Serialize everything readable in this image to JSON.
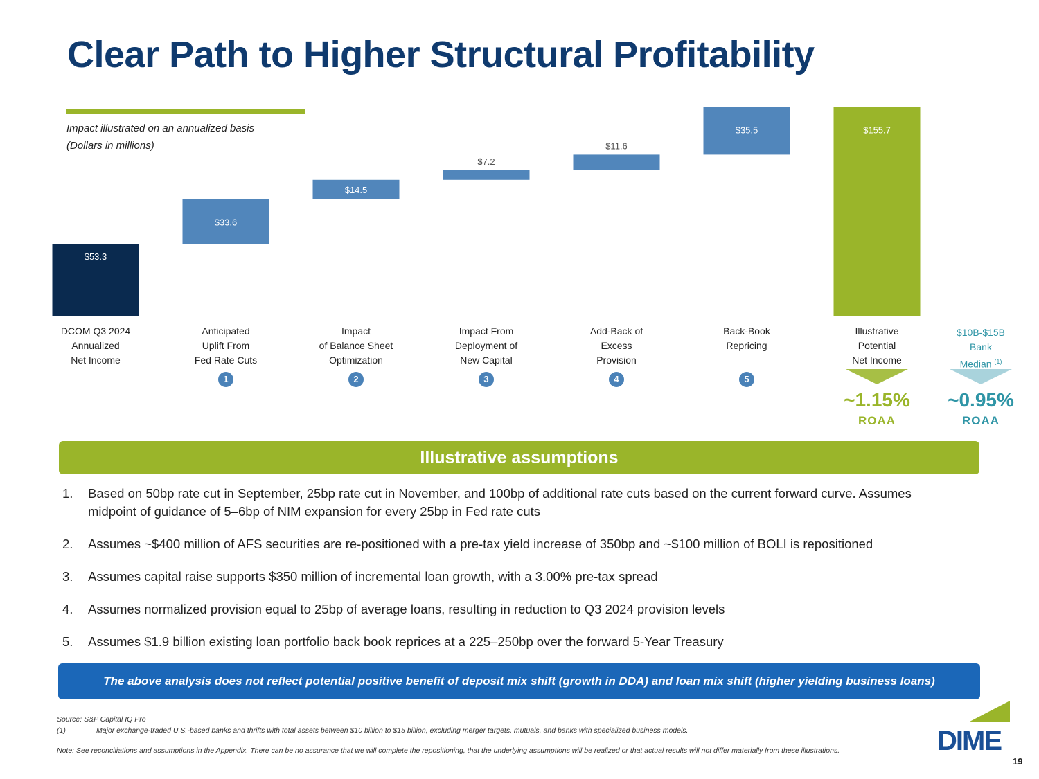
{
  "title": "Clear Path to Higher Structural Profitability",
  "subtitle1": "Impact illustrated on an annualized basis",
  "subtitle2": "(Dollars in millions)",
  "chart_data": {
    "type": "bar",
    "subtype": "waterfall",
    "categories": [
      [
        "DCOM Q3 2024",
        "Annualized",
        "Net Income"
      ],
      [
        "Anticipated",
        "Uplift From",
        "Fed Rate Cuts"
      ],
      [
        "Impact",
        "of Balance Sheet",
        "Optimization"
      ],
      [
        "Impact From",
        "Deployment of",
        "New Capital"
      ],
      [
        "Add-Back of",
        "Excess",
        "Provision"
      ],
      [
        "Back-Book",
        "Repricing"
      ],
      [
        "Illustrative",
        "Potential",
        "Net Income"
      ]
    ],
    "values": [
      53.3,
      33.6,
      14.5,
      7.2,
      11.6,
      35.5,
      155.7
    ],
    "labels": [
      "$53.3",
      "$33.6",
      "$14.5",
      "$7.2",
      "$11.6",
      "$35.5",
      "$155.7"
    ],
    "kinds": [
      "total",
      "delta",
      "delta",
      "delta",
      "delta",
      "delta",
      "total"
    ],
    "markers": [
      "",
      "1",
      "2",
      "3",
      "4",
      "5",
      ""
    ],
    "colors": {
      "start": "#0a2a4f",
      "delta": "#5186bb",
      "end": "#9ab52a"
    },
    "units": "Dollars in millions",
    "ylim": [
      0,
      160
    ]
  },
  "median": {
    "line1": "$10B-$15B",
    "line2": "Bank",
    "line3": "Median",
    "note": "(1)"
  },
  "roaa": {
    "company_value": "~1.15%",
    "company_label": "ROAA",
    "median_value": "~0.95%",
    "median_label": "ROAA"
  },
  "assumptions": {
    "header": "Illustrative assumptions",
    "items": [
      {
        "n": "1.",
        "text": "Based on 50bp rate cut in September, 25bp rate cut in November, and 100bp of additional rate cuts based on the current forward curve. Assumes midpoint of guidance of 5–6bp of NIM expansion for every 25bp in Fed rate cuts"
      },
      {
        "n": "2.",
        "text": "Assumes ~$400 million of AFS securities are re-positioned with a pre-tax yield increase of 350bp and ~$100 million of BOLI is repositioned"
      },
      {
        "n": "3.",
        "text": "Assumes capital raise supports $350 million of incremental loan growth, with a 3.00% pre-tax spread"
      },
      {
        "n": "4.",
        "text": "Assumes normalized provision equal to 25bp of average loans, resulting in reduction to Q3 2024 provision levels"
      },
      {
        "n": "5.",
        "text": "Assumes $1.9 billion existing loan portfolio back book reprices at a 225–250bp over the forward 5-Year Treasury"
      }
    ]
  },
  "callout": "The above analysis does not reflect potential positive benefit of deposit mix shift (growth in DDA) and loan mix shift (higher yielding business loans)",
  "footnotes": {
    "source": "Source: S&P Capital IQ Pro",
    "fn1_marker": "(1)",
    "fn1": "Major exchange-traded U.S.-based banks and thrifts with total assets between $10 billion to $15 billion, excluding merger targets, mutuals, and banks with specialized business models.",
    "note": "Note: See reconciliations and assumptions in the Appendix. There can be no assurance that we will complete the repositioning, that the underlying assumptions will be realized or that actual results will not differ materially from these illustrations."
  },
  "logo": "DIME",
  "page_number": "19"
}
